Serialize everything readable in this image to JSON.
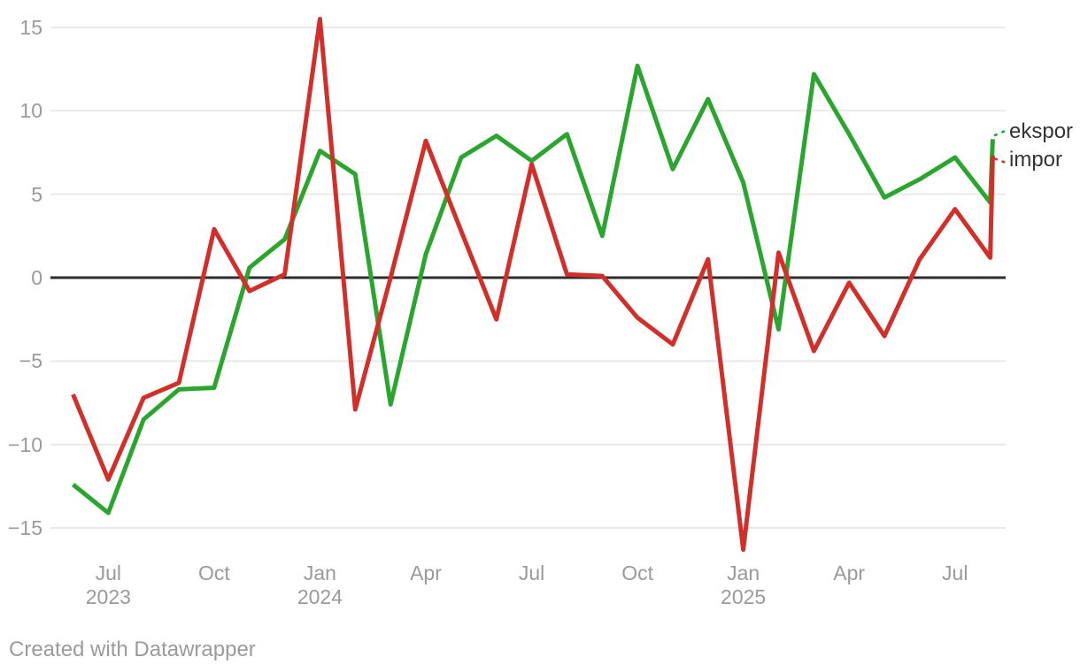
{
  "footer": {
    "credit": "Created with Datawrapper"
  },
  "legend": {
    "items": [
      {
        "label": "ekspor",
        "color": "#2aa52e"
      },
      {
        "label": "impor",
        "color": "#d22e2a"
      }
    ]
  },
  "axes": {
    "y_ticks": [
      {
        "label": "15",
        "value": 15
      },
      {
        "label": "10",
        "value": 10
      },
      {
        "label": "5",
        "value": 5
      },
      {
        "label": "0",
        "value": 0
      },
      {
        "label": "−5",
        "value": -5
      },
      {
        "label": "−10",
        "value": -10
      },
      {
        "label": "−15",
        "value": -15
      }
    ],
    "x_ticks": [
      {
        "label": "Jul",
        "year": "2023",
        "index": 1
      },
      {
        "label": "Oct",
        "year": "",
        "index": 4
      },
      {
        "label": "Jan",
        "year": "2024",
        "index": 7
      },
      {
        "label": "Apr",
        "year": "",
        "index": 10
      },
      {
        "label": "Jul",
        "year": "",
        "index": 13
      },
      {
        "label": "Oct",
        "year": "",
        "index": 16
      },
      {
        "label": "Jan",
        "year": "2025",
        "index": 19
      },
      {
        "label": "Apr",
        "year": "",
        "index": 22
      },
      {
        "label": "Jul",
        "year": "",
        "index": 25
      }
    ]
  },
  "colors": {
    "grid": "#e9e9e9",
    "zero_line": "#2d2d2d",
    "tick_text": "#9a9a9a"
  },
  "chart_data": {
    "type": "line",
    "x": [
      "Jun 2023",
      "Jul 2023",
      "Aug 2023",
      "Sep 2023",
      "Oct 2023",
      "Nov 2023",
      "Dec 2023",
      "Jan 2024",
      "Feb 2024",
      "Mar 2024",
      "Apr 2024",
      "May 2024",
      "Jun 2024",
      "Jul 2024",
      "Aug 2024",
      "Sep 2024",
      "Oct 2024",
      "Nov 2024",
      "Dec 2024",
      "Jan 2025",
      "Feb 2025",
      "Mar 2025",
      "Apr 2025",
      "May 2025",
      "Jun 2025",
      "Jul 2025",
      "Aug 2025",
      "Sep 2025"
    ],
    "series": [
      {
        "name": "ekspor",
        "color": "#2aa52e",
        "values": [
          -12.4,
          -14.1,
          -8.5,
          -6.7,
          -6.6,
          0.6,
          2.3,
          7.6,
          6.2,
          -7.6,
          1.4,
          7.2,
          8.5,
          7.0,
          8.6,
          2.5,
          12.7,
          6.5,
          10.7,
          5.7,
          -3.1,
          12.2,
          8.6,
          4.8,
          5.9,
          7.2,
          4.5,
          8.3
        ]
      },
      {
        "name": "impor",
        "color": "#d22e2a",
        "values": [
          -7.0,
          -12.1,
          -7.2,
          -6.3,
          2.9,
          -0.8,
          0.2,
          15.5,
          -7.9,
          0.0,
          8.2,
          2.8,
          -2.5,
          6.8,
          0.2,
          0.1,
          -2.4,
          -4.0,
          1.1,
          -16.3,
          1.5,
          -4.4,
          -0.3,
          -3.5,
          1.1,
          4.1,
          1.2,
          7.3
        ]
      }
    ],
    "ylim": [
      -17.6,
      16.6
    ],
    "xlabel": "",
    "ylabel": "",
    "title": "",
    "grid": "horizontal-only",
    "legend_position": "right-of-line-ends",
    "note": "final point of each series is drawn almost vertically above the previous point"
  }
}
